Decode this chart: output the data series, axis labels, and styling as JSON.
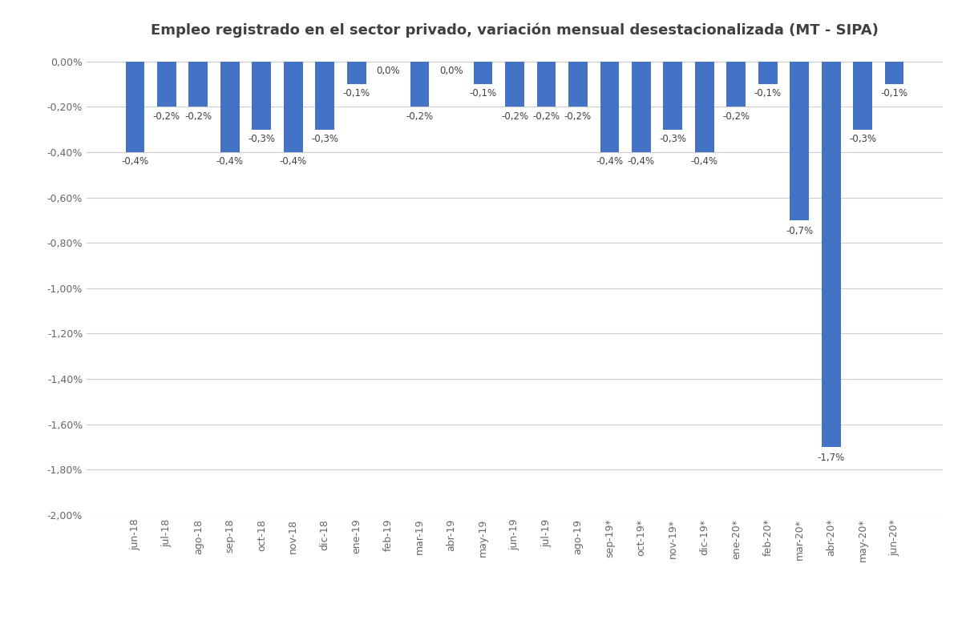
{
  "categories": [
    "jun-18",
    "jul-18",
    "ago-18",
    "sep-18",
    "oct-18",
    "nov-18",
    "dic-18",
    "ene-19",
    "feb-19",
    "mar-19",
    "abr-19",
    "may-19",
    "jun-19",
    "jul-19",
    "ago-19",
    "sep-19*",
    "oct-19*",
    "nov-19*",
    "dic-19*",
    "ene-20*",
    "feb-20*",
    "mar-20*",
    "abr-20*",
    "may-20*",
    "jun-20*"
  ],
  "values": [
    -0.4,
    -0.2,
    -0.2,
    -0.4,
    -0.3,
    -0.4,
    -0.3,
    -0.1,
    0.0,
    -0.2,
    0.0,
    -0.1,
    -0.2,
    -0.2,
    -0.2,
    -0.4,
    -0.4,
    -0.3,
    -0.4,
    -0.2,
    -0.1,
    -0.7,
    -1.7,
    -0.3,
    -0.1
  ],
  "bar_color": "#4472C4",
  "title": "Empleo registrado en el sector privado, variación mensual desestacionalizada (MT - SIPA)",
  "title_fontsize": 13,
  "label_fontsize": 8.5,
  "tick_fontsize": 9,
  "ylim": [
    -2.0,
    0.05
  ],
  "yticks": [
    0.0,
    -0.2,
    -0.4,
    -0.6,
    -0.8,
    -1.0,
    -1.2,
    -1.4,
    -1.6,
    -1.8,
    -2.0
  ],
  "background_color": "#ffffff",
  "grid_color": "#cccccc"
}
